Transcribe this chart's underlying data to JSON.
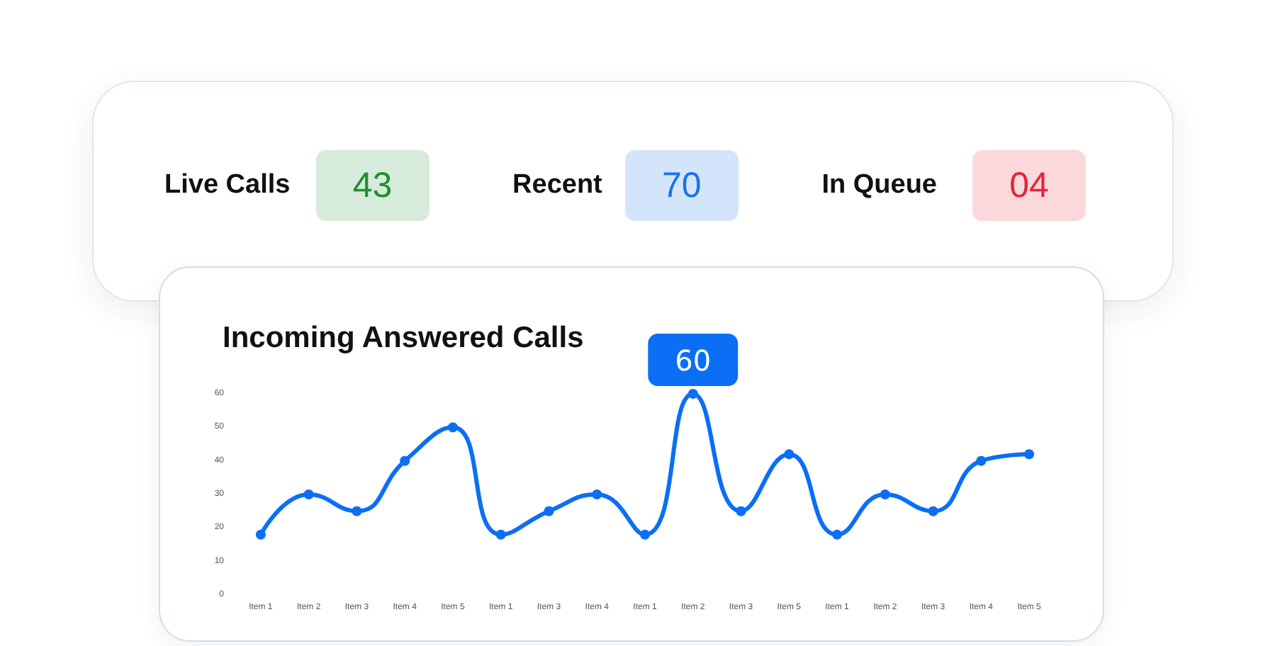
{
  "chart_data": [
    {
      "type": "other",
      "categories": [
        "Live Calls",
        "Recent",
        "In Queue"
      ],
      "value_labels": [
        "43",
        "70",
        "04"
      ]
    },
    {
      "type": "line",
      "title": "Incoming Answered Calls",
      "categories": [
        "Item 1",
        "Item 2",
        "Item 3",
        "Item 4",
        "Item 5",
        "Item 1",
        "Item 3",
        "Item 4",
        "Item 1",
        "Item 2",
        "Item 3",
        "Item 5",
        "Item 1",
        "Item 2",
        "Item 3",
        "Item 4",
        "Item 5"
      ],
      "values": [
        18,
        30,
        25,
        40,
        50,
        18,
        25,
        30,
        18,
        60,
        25,
        42,
        18,
        30,
        25,
        40,
        42
      ],
      "value_labels": [
        null,
        null,
        null,
        null,
        null,
        null,
        null,
        null,
        null,
        "60",
        null,
        null,
        null,
        null,
        null,
        null,
        null
      ],
      "color": "#0b6ff5",
      "ylim": [
        0,
        60
      ],
      "yticks": [
        0,
        10,
        20,
        30,
        40,
        50,
        60
      ],
      "grid": false,
      "marker": "circle",
      "line_style": "solid"
    }
  ]
}
